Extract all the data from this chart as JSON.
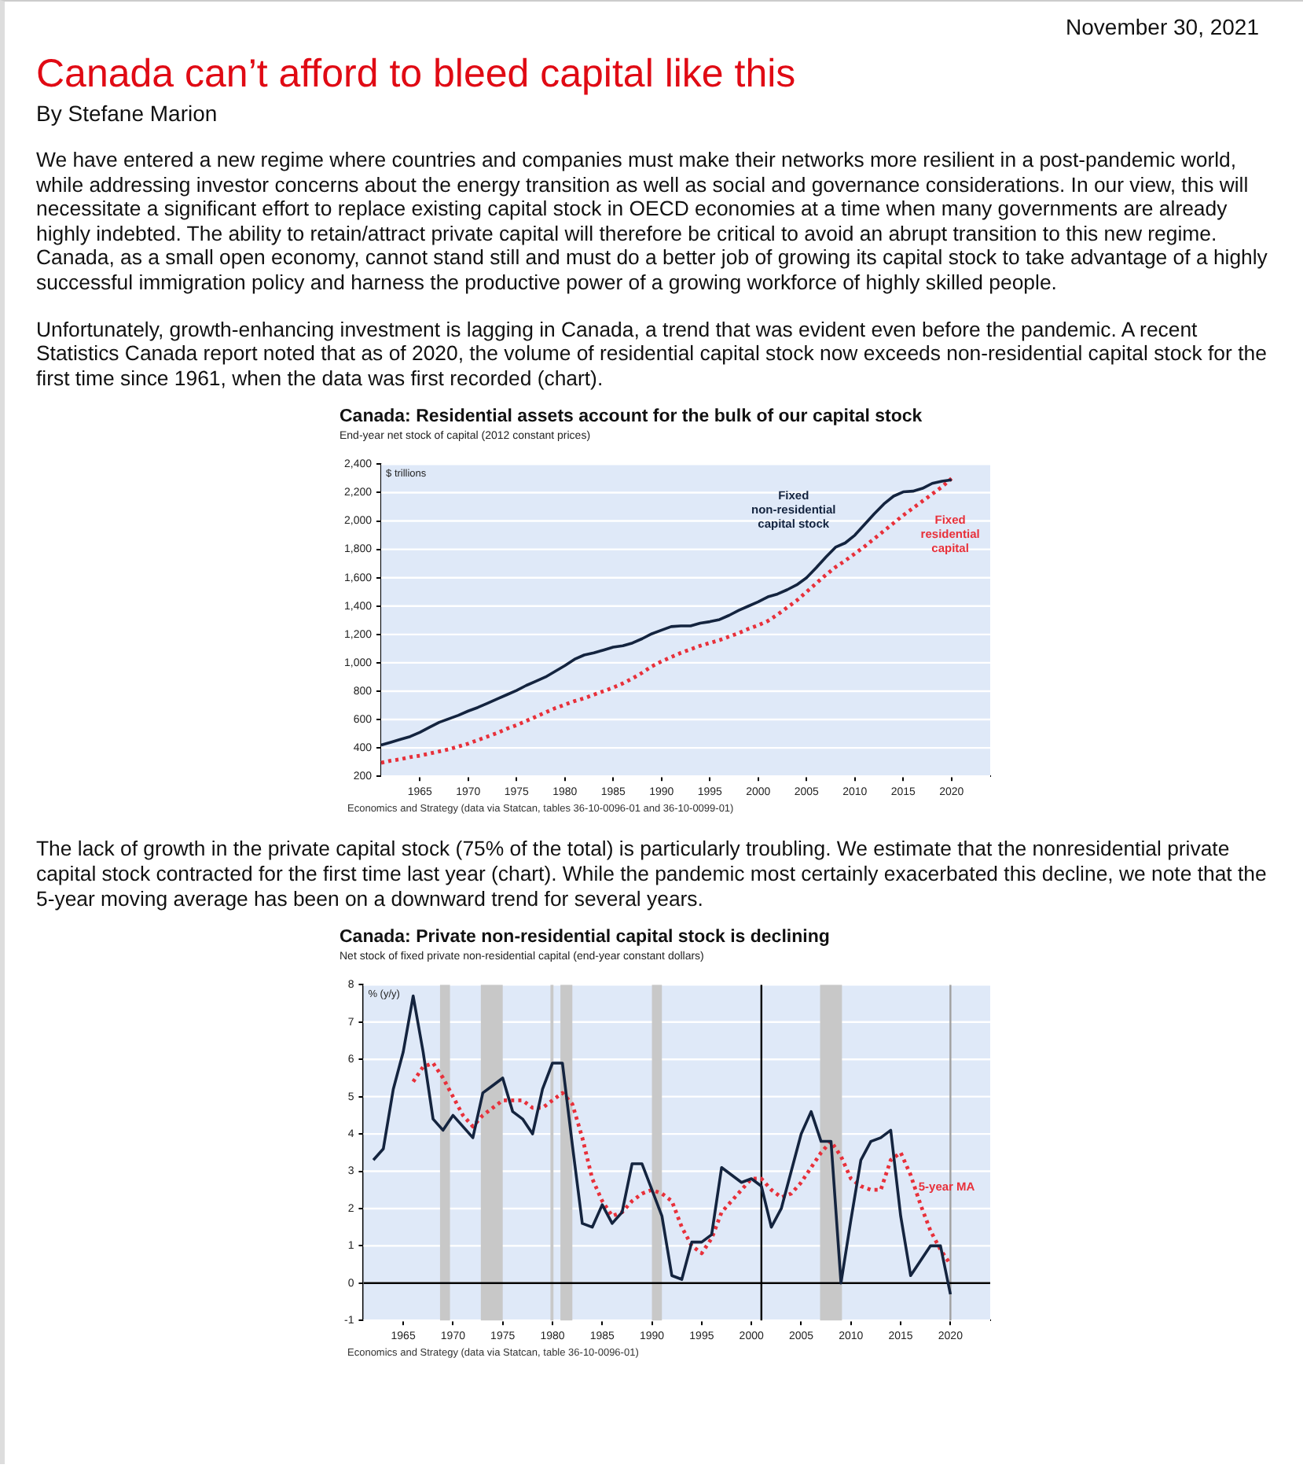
{
  "chart_data": [
    {
      "type": "line",
      "title": "Canada: Residential assets account for the bulk of our capital stock",
      "subtitle": "End-year net stock of capital (2012 constant prices)",
      "ylabel": "$ trillions",
      "annotations": [
        "November 30, 2021",
        "Canada can’t afford to bleed capital like this",
        "By Stefane Marion",
        "We have entered a new regime where countries and companies must make their networks more resilient in a post-pandemic world, while addressing investor concerns about the energy transition as well as social and governance considerations.  In our view, this will necessitate a significant effort to replace existing capital stock in OECD economies at a time when many governments are already highly indebted. The ability to retain/attract private capital will therefore be critical to avoid an abrupt transition to this new regime. Canada, as a small open economy, cannot stand still and must do a better job of growing its capital stock to take advantage of a highly successful immigration policy and harness the productive power of a growing workforce of highly skilled people.",
        "Unfortunately, growth-enhancing investment is lagging in Canada, a trend that was evident even before the pandemic. A recent Statistics Canada report noted that as of 2020, the volume of residential capital stock now exceeds non-residential capital stock for the first time since 1961, when the data was first recorded (chart).",
        "Economics and Strategy (data via Statcan, tables 36-10-0096-01 and 36-10-0099-01)"
      ],
      "x": [
        1961,
        1962,
        1963,
        1964,
        1965,
        1966,
        1967,
        1968,
        1969,
        1970,
        1971,
        1972,
        1973,
        1974,
        1975,
        1976,
        1977,
        1978,
        1979,
        1980,
        1981,
        1982,
        1983,
        1984,
        1985,
        1986,
        1987,
        1988,
        1989,
        1990,
        1991,
        1992,
        1993,
        1994,
        1995,
        1996,
        1997,
        1998,
        1999,
        2000,
        2001,
        2002,
        2003,
        2004,
        2005,
        2006,
        2007,
        2008,
        2009,
        2010,
        2011,
        2012,
        2013,
        2014,
        2015,
        2016,
        2017,
        2018,
        2019,
        2020
      ],
      "series": [
        {
          "name": "Fixed non-residential capital stock",
          "color": "#14243f",
          "line_style": "solid",
          "values": [
            420,
            440,
            460,
            480,
            510,
            545,
            580,
            605,
            630,
            660,
            685,
            715,
            745,
            775,
            805,
            840,
            870,
            900,
            940,
            980,
            1025,
            1055,
            1070,
            1090,
            1110,
            1120,
            1140,
            1170,
            1205,
            1230,
            1255,
            1260,
            1260,
            1280,
            1290,
            1305,
            1335,
            1370,
            1400,
            1430,
            1465,
            1485,
            1515,
            1550,
            1600,
            1670,
            1745,
            1815,
            1845,
            1900,
            1975,
            2050,
            2120,
            2175,
            2205,
            2210,
            2230,
            2265,
            2280,
            2290
          ]
        },
        {
          "name": "Fixed residential capital",
          "color": "#e8303a",
          "line_style": "dotted",
          "values": [
            295,
            310,
            320,
            335,
            345,
            360,
            375,
            390,
            410,
            430,
            455,
            480,
            505,
            535,
            560,
            590,
            620,
            650,
            680,
            705,
            730,
            750,
            775,
            800,
            825,
            855,
            890,
            930,
            975,
            1010,
            1040,
            1070,
            1095,
            1120,
            1140,
            1160,
            1185,
            1210,
            1240,
            1265,
            1295,
            1340,
            1390,
            1440,
            1500,
            1560,
            1620,
            1675,
            1720,
            1770,
            1820,
            1875,
            1930,
            1985,
            2040,
            2090,
            2140,
            2190,
            2240,
            2300
          ]
        }
      ],
      "xlim": [
        1961,
        2024
      ],
      "xticks": [
        1965,
        1970,
        1975,
        1980,
        1985,
        1990,
        1995,
        2000,
        2005,
        2010,
        2015,
        2020
      ],
      "ylim": [
        200,
        2400
      ],
      "yticks": [
        200,
        400,
        600,
        800,
        {
          "value": 1000,
          "label": "1,000"
        },
        {
          "value": 1200,
          "label": "1,200"
        },
        {
          "value": 1400,
          "label": "1,400"
        },
        {
          "value": 1600,
          "label": "1,600"
        },
        {
          "value": 1800,
          "label": "1,800"
        },
        {
          "value": 2000,
          "label": "2,000"
        },
        {
          "value": 2200,
          "label": "2,200"
        },
        {
          "value": 2400,
          "label": "2,400"
        }
      ],
      "grid": "y"
    },
    {
      "type": "line",
      "title": "Canada: Private non-residential capital stock is declining",
      "subtitle": "Net stock of fixed private non-residential capital (end-year constant dollars)",
      "ylabel": "% (y/y)",
      "annotations": [
        "The lack of growth in the private capital stock (75% of the total) is particularly troubling. We estimate that the nonresidential private capital stock contracted for the first time last year (chart). While the pandemic most certainly exacerbated this decline, we note that the 5-year moving average has been on a downward trend for several years.",
        "Economics and Strategy (data via Statcan, table 36-10-0096-01)"
      ],
      "x": [
        1962,
        1963,
        1964,
        1965,
        1966,
        1967,
        1968,
        1969,
        1970,
        1971,
        1972,
        1973,
        1974,
        1975,
        1976,
        1977,
        1978,
        1979,
        1980,
        1981,
        1982,
        1983,
        1984,
        1985,
        1986,
        1987,
        1988,
        1989,
        1990,
        1991,
        1992,
        1993,
        1994,
        1995,
        1996,
        1997,
        1998,
        1999,
        2000,
        2001,
        2002,
        2003,
        2004,
        2005,
        2006,
        2007,
        2008,
        2009,
        2010,
        2011,
        2012,
        2013,
        2014,
        2015,
        2016,
        2017,
        2018,
        2019,
        2020
      ],
      "series": [
        {
          "color": "#14243f",
          "line_style": "solid",
          "values": [
            3.3,
            3.6,
            5.2,
            6.2,
            7.7,
            6.2,
            4.4,
            4.1,
            4.5,
            4.2,
            3.9,
            5.1,
            5.3,
            5.5,
            4.6,
            4.4,
            4.0,
            5.2,
            5.9,
            5.9,
            3.7,
            1.6,
            1.5,
            2.1,
            1.6,
            1.9,
            3.2,
            3.2,
            2.5,
            1.8,
            0.2,
            0.1,
            1.1,
            1.1,
            1.3,
            3.1,
            2.9,
            2.7,
            2.8,
            2.6,
            1.5,
            2.0,
            3.0,
            4.0,
            4.6,
            3.8,
            3.8,
            0.0,
            1.7,
            3.3,
            3.8,
            3.9,
            4.1,
            1.8,
            0.2,
            0.6,
            1.0,
            1.0,
            -0.3
          ]
        },
        {
          "name": "5-year MA",
          "color": "#e8303a",
          "line_style": "dotted",
          "x": [
            1966,
            1967,
            1968,
            1969,
            1970,
            1971,
            1972,
            1973,
            1974,
            1975,
            1976,
            1977,
            1978,
            1979,
            1980,
            1981,
            1982,
            1983,
            1984,
            1985,
            1986,
            1987,
            1988,
            1989,
            1990,
            1991,
            1992,
            1993,
            1994,
            1995,
            1996,
            1997,
            1998,
            1999,
            2000,
            2001,
            2002,
            2003,
            2004,
            2005,
            2006,
            2007,
            2008,
            2009,
            2010,
            2011,
            2012,
            2013,
            2014,
            2015,
            2016,
            2017,
            2018,
            2019,
            2020
          ],
          "values": [
            5.4,
            5.8,
            5.9,
            5.5,
            5.0,
            4.5,
            4.2,
            4.5,
            4.7,
            4.9,
            4.9,
            4.9,
            4.7,
            4.7,
            4.9,
            5.1,
            4.8,
            3.9,
            2.8,
            2.2,
            1.8,
            1.9,
            2.2,
            2.4,
            2.5,
            2.4,
            2.2,
            1.5,
            1.0,
            0.8,
            1.2,
            1.9,
            2.2,
            2.5,
            2.8,
            2.8,
            2.5,
            2.3,
            2.4,
            2.7,
            3.1,
            3.5,
            3.8,
            3.4,
            2.8,
            2.6,
            2.5,
            2.5,
            3.3,
            3.5,
            2.9,
            2.1,
            1.4,
            0.9,
            0.5
          ]
        }
      ],
      "bands": [
        {
          "axis": "x",
          "from": 1968.7,
          "to": 1969.7,
          "color": "#c8c8c8"
        },
        {
          "axis": "x",
          "from": 1972.8,
          "to": 1975.0,
          "color": "#c8c8c8"
        },
        {
          "axis": "x",
          "from": 1979.8,
          "to": 1980.1,
          "color": "#c8c8c8"
        },
        {
          "axis": "x",
          "from": 1980.8,
          "to": 1982.0,
          "color": "#c8c8c8"
        },
        {
          "axis": "x",
          "from": 1990.0,
          "to": 1991.0,
          "color": "#c8c8c8"
        },
        {
          "axis": "x",
          "from": 2006.9,
          "to": 2009.1,
          "color": "#c8c8c8"
        }
      ],
      "ref_lines": [
        {
          "axis": "x",
          "value": 2001,
          "color": "#000000"
        },
        {
          "axis": "x",
          "value": 2020,
          "color": "#a0a0a0"
        },
        {
          "axis": "y",
          "value": 0,
          "color": "#000000"
        }
      ],
      "xlim": [
        1961,
        2024
      ],
      "xticks": [
        1965,
        1970,
        1975,
        1980,
        1985,
        1990,
        1995,
        2000,
        2005,
        2010,
        2015,
        2020
      ],
      "ylim": [
        -1,
        8
      ],
      "yticks": [
        -1,
        0,
        1,
        2,
        3,
        4,
        5,
        6,
        7,
        8
      ],
      "grid": "y"
    }
  ]
}
